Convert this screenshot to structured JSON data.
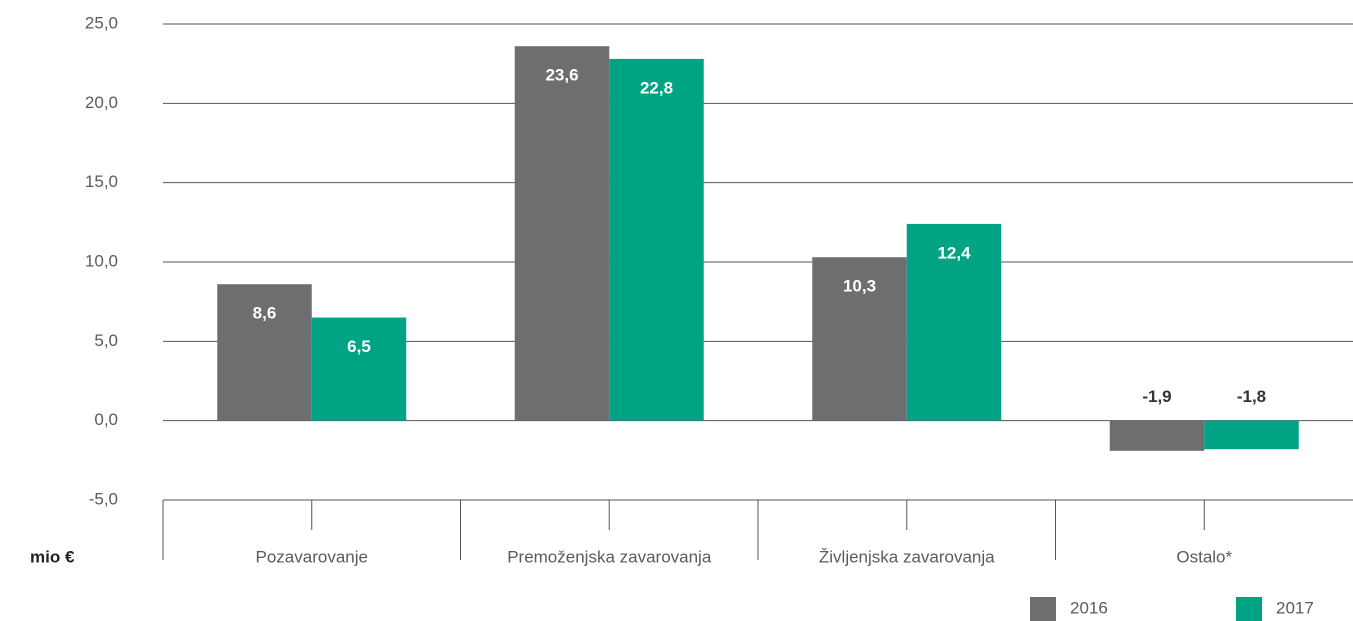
{
  "chart_data": {
    "type": "bar",
    "ylabel": "mio €",
    "categories": [
      "Pozavarovanje",
      "Premoženjska zavarovanja",
      "Življenjska zavarovanja",
      "Ostalo*"
    ],
    "series": [
      {
        "name": "2016",
        "color": "#6d6e70",
        "values": [
          8.6,
          23.6,
          10.3,
          -1.9
        ],
        "value_labels": [
          "8,6",
          "23,6",
          "10,3",
          "-1,9"
        ]
      },
      {
        "name": "2017",
        "color": "#00a384",
        "values": [
          6.5,
          22.8,
          12.4,
          -1.8
        ],
        "value_labels": [
          "6,5",
          "22,8",
          "12,4",
          "-1,8"
        ]
      }
    ],
    "ylim": [
      -5,
      25
    ],
    "yticks": [
      {
        "value": -5,
        "label": "-5,0"
      },
      {
        "value": 0,
        "label": "0,0"
      },
      {
        "value": 5,
        "label": "5,0"
      },
      {
        "value": 10,
        "label": "10,0"
      },
      {
        "value": 15,
        "label": "15,0"
      },
      {
        "value": 20,
        "label": "20,0"
      },
      {
        "value": 25,
        "label": "25,0"
      }
    ],
    "grid": true,
    "legend": "bottom-right"
  }
}
